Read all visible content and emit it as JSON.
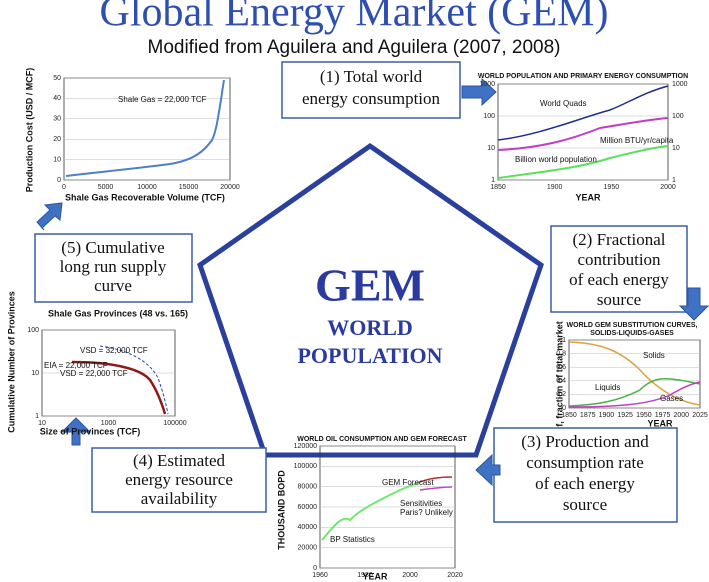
{
  "header": {
    "title": "Global Energy Market (GEM)",
    "subtitle": "Modified from Aguilera and Aguilera (2007, 2008)"
  },
  "center": {
    "title": "GEM",
    "line1": "WORLD",
    "line2": "POPULATION"
  },
  "steps": [
    [
      "(1) Total world",
      "energy consumption"
    ],
    [
      "(2) Fractional",
      "contribution",
      "of each energy",
      "source"
    ],
    [
      "(3) Production and",
      "consumption rate",
      "of each energy",
      "source"
    ],
    [
      "(4) Estimated",
      "energy resource",
      "availability"
    ],
    [
      "(5) Cumulative",
      "long run supply",
      "curve"
    ]
  ],
  "panels": {
    "supply": {
      "ylabel": "Production Cost (USD / MCF)",
      "xlabel": "Shale Gas Recoverable Volume (TCF)",
      "annotations": [
        "Shale Gas = 22,000 TCF"
      ],
      "yticks": [
        "0",
        "10",
        "20",
        "30",
        "40",
        "50"
      ],
      "xticks": [
        "0",
        "5000",
        "10000",
        "15000",
        "20000"
      ]
    },
    "consumption": {
      "title": "WORLD POPULATION AND PRIMARY ENERGY CONSUMPTION",
      "xlabel": "YEAR",
      "annotations": [
        "World Quads",
        "Million BTU/yr/capita",
        "Billion world population"
      ],
      "yticks": [
        "1",
        "10",
        "100",
        "1000"
      ],
      "y2ticks": [
        "1",
        "10",
        "100",
        "1000"
      ],
      "xticks": [
        "1850",
        "1900",
        "1950",
        "2000"
      ]
    },
    "substitution": {
      "title": "WORLD GEM SUBSTITUTION CURVES,",
      "title2": "SOLIDS-LIQUIDS-GASES",
      "ylabel": "f, fraction of total market",
      "xlabel": "YEAR",
      "annotations": [
        "Solids",
        "Liquids",
        "Gases"
      ],
      "yticks": [
        "0",
        "0.2",
        "0.4",
        "0.6",
        "0.8",
        "1"
      ],
      "xticks": [
        "1850",
        "1875",
        "1900",
        "1925",
        "1950",
        "1975",
        "2000",
        "2025"
      ]
    },
    "oil": {
      "title": "WORLD OIL CONSUMPTION AND GEM FORECAST",
      "ylabel": "THOUSAND BOPD",
      "xlabel": "YEAR",
      "annotations": [
        "GEM Forecast",
        "Sensitivities",
        "Paris? Unlikely",
        "BP Statistics"
      ],
      "yticks": [
        "0",
        "20000",
        "40000",
        "60000",
        "80000",
        "100000",
        "120000"
      ],
      "xticks": [
        "1960",
        "1980",
        "2000",
        "2020"
      ]
    },
    "provinces": {
      "title": "Shale Gas Provinces (48 vs. 165)",
      "ylabel": "Cumulative Number of Provinces",
      "xlabel": "Size of Provinces (TCF)",
      "annotations": [
        "VSD = 32,000 TCF",
        "EIA = 22,000 TCF",
        "VSD = 22,000 TCF"
      ],
      "yticks": [
        "1",
        "10",
        "100"
      ],
      "xticks": [
        "10",
        "1000",
        "100000"
      ]
    }
  }
}
